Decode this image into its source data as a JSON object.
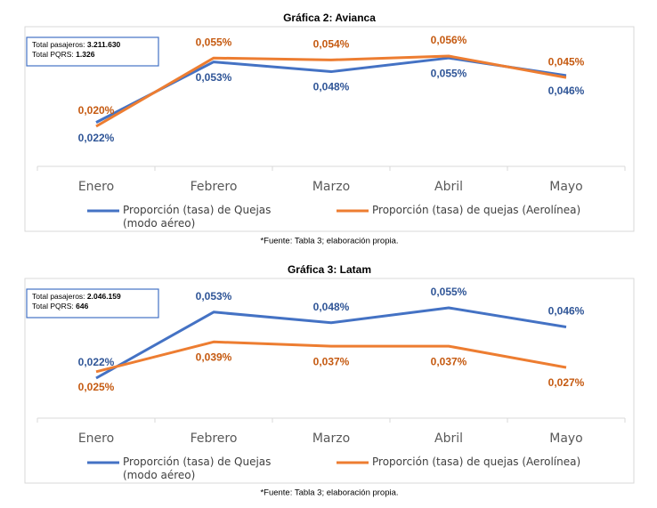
{
  "chart_data": [
    {
      "type": "line",
      "title": "Gráfica 2: Avianca",
      "summary": [
        {
          "label": "Total pasajeros:",
          "value": "3.211.630"
        },
        {
          "label": "Total PQRS:",
          "value": "1.326"
        }
      ],
      "categories": [
        "Enero",
        "Febrero",
        "Marzo",
        "Abril",
        "Mayo"
      ],
      "series": [
        {
          "name": "Proporción (tasa) de Quejas (modo aéreo)",
          "color": "#4472c4",
          "values": [
            0.022,
            0.053,
            0.048,
            0.055,
            0.046
          ],
          "value_labels": [
            "0,022%",
            "0,053%",
            "0,048%",
            "0,055%",
            "0,046%"
          ]
        },
        {
          "name": "Proporción (tasa) de quejas (Aerolínea)",
          "color": "#ed7d31",
          "values": [
            0.02,
            0.055,
            0.054,
            0.056,
            0.045
          ],
          "value_labels": [
            "0,020%",
            "0,055%",
            "0,054%",
            "0,056%",
            "0,045%"
          ]
        }
      ],
      "note": "*Fuente: Tabla 3; elaboración propia."
    },
    {
      "type": "line",
      "title": "Gráfica 3: Latam",
      "summary": [
        {
          "label": "Total pasajeros:",
          "value": "2.046.159"
        },
        {
          "label": "Total PQRS:",
          "value": "646"
        }
      ],
      "categories": [
        "Enero",
        "Febrero",
        "Marzo",
        "Abril",
        "Mayo"
      ],
      "series": [
        {
          "name": "Proporción (tasa) de Quejas (modo aéreo)",
          "color": "#4472c4",
          "values": [
            0.022,
            0.053,
            0.048,
            0.055,
            0.046
          ],
          "value_labels": [
            "0,022%",
            "0,053%",
            "0,048%",
            "0,055%",
            "0,046%"
          ]
        },
        {
          "name": "Proporción (tasa) de quejas (Aerolínea)",
          "color": "#ed7d31",
          "values": [
            0.025,
            0.039,
            0.037,
            0.037,
            0.027
          ],
          "value_labels": [
            "0,025%",
            "0,039%",
            "0,037%",
            "0,037%",
            "0,027%"
          ]
        }
      ],
      "note": "*Fuente: Tabla 3; elaboración propia."
    }
  ]
}
